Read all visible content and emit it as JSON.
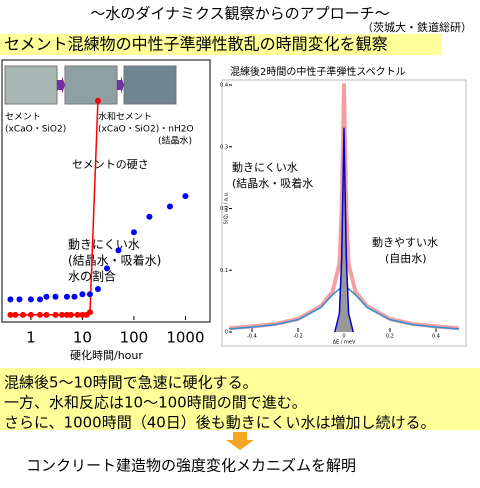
{
  "header": {
    "subtitle": "～水のダイナミクス観察からのアプローチ～",
    "affiliation": "（茨城大・鉄道総研）",
    "section": "セメント混練物の中性子準弾性散乱の時間変化を観察"
  },
  "chart_data": [
    {
      "type": "scatter",
      "xlabel": "硬化時間/hour",
      "log_x": true,
      "xlim": [
        0.3,
        3000
      ],
      "ylim": [
        0,
        1
      ],
      "xticks": [
        1,
        10,
        100,
        1000
      ],
      "annotations": [
        {
          "lines": [
            "セメント",
            "(xCaO・SiO2)"
          ],
          "color": "#000000"
        },
        {
          "lines": [
            "水和セメント",
            "(xCaO・SiO2)・nH2O",
            "(結晶水)"
          ],
          "color": "#000000"
        },
        {
          "lines": [
            "セメントの硬さ"
          ],
          "color": "#ff0000"
        },
        {
          "lines": [
            "動きにくい水",
            "(結晶水・吸着水)",
            "水の割合"
          ],
          "color": "#0000ff"
        }
      ],
      "series": [
        {
          "color": "#ff0000",
          "connect": true,
          "x": [
            0.4,
            0.5,
            0.7,
            1,
            1.5,
            2,
            3,
            4,
            5,
            6,
            8,
            10,
            12,
            14,
            20
          ],
          "values": [
            0.02,
            0.02,
            0.02,
            0.02,
            0.02,
            0.02,
            0.02,
            0.02,
            0.02,
            0.02,
            0.02,
            0.02,
            0.02,
            0.03,
            0.85
          ]
        },
        {
          "color": "#0000ff",
          "connect": false,
          "x": [
            0.4,
            0.6,
            1,
            1.5,
            2,
            3,
            5,
            7,
            10,
            14,
            20,
            30,
            50,
            100,
            200,
            500,
            1000
          ],
          "values": [
            0.08,
            0.08,
            0.08,
            0.08,
            0.09,
            0.09,
            0.09,
            0.09,
            0.1,
            0.1,
            0.12,
            0.2,
            0.27,
            0.34,
            0.4,
            0.44,
            0.48
          ]
        }
      ]
    },
    {
      "type": "line",
      "title": "混練後2時間の中性子準弾性スペクトル",
      "xlabel": "ΔE / meV",
      "ylabel": "S(Q, ω) / a.u.",
      "xlim": [
        -0.5,
        0.5
      ],
      "ylim": [
        0,
        0.4
      ],
      "xticks": [
        -0.4,
        -0.2,
        0,
        0.2,
        0.4
      ],
      "yticks": [
        0,
        0.1,
        0.2,
        0.3,
        0.4
      ],
      "annotations": [
        {
          "lines": [
            "動きにくい水",
            "(結晶水・吸着水"
          ],
          "color": "#0000cc"
        },
        {
          "lines": [
            "動きやすい水",
            "(自由水)"
          ],
          "color": "#2f8fd8"
        }
      ],
      "series": [
        {
          "color": "#f4a0a0",
          "width": 4,
          "x": [
            -0.5,
            -0.4,
            -0.3,
            -0.2,
            -0.1,
            -0.05,
            -0.02,
            -0.01,
            0,
            0.01,
            0.02,
            0.05,
            0.1,
            0.2,
            0.3,
            0.4,
            0.5
          ],
          "values": [
            0.006,
            0.009,
            0.013,
            0.021,
            0.042,
            0.065,
            0.11,
            0.2,
            0.4,
            0.2,
            0.11,
            0.065,
            0.042,
            0.021,
            0.013,
            0.009,
            0.006
          ]
        },
        {
          "color": "#2f8fd8",
          "width": 1.5,
          "x": [
            -0.5,
            -0.4,
            -0.3,
            -0.2,
            -0.1,
            -0.05,
            -0.02,
            0,
            0.02,
            0.05,
            0.1,
            0.2,
            0.3,
            0.4,
            0.5
          ],
          "values": [
            0.005,
            0.008,
            0.012,
            0.02,
            0.04,
            0.06,
            0.07,
            0.073,
            0.07,
            0.06,
            0.04,
            0.02,
            0.012,
            0.008,
            0.005
          ]
        },
        {
          "color": "#0000cc",
          "width": 1.5,
          "fill": "#999999",
          "x": [
            -0.04,
            -0.02,
            -0.01,
            0,
            0.01,
            0.02,
            0.04
          ],
          "values": [
            0,
            0.03,
            0.12,
            0.33,
            0.12,
            0.03,
            0
          ]
        }
      ]
    }
  ],
  "findings": [
    "混練後5～10時間で急速に硬化する。",
    "一方、水和反応は10～100時間の間で進む。",
    "さらに、1000時間（40日）後も動きにくい水は増加し続ける。"
  ],
  "conclusion": "コンクリート建造物の強度変化メカニズムを解明"
}
